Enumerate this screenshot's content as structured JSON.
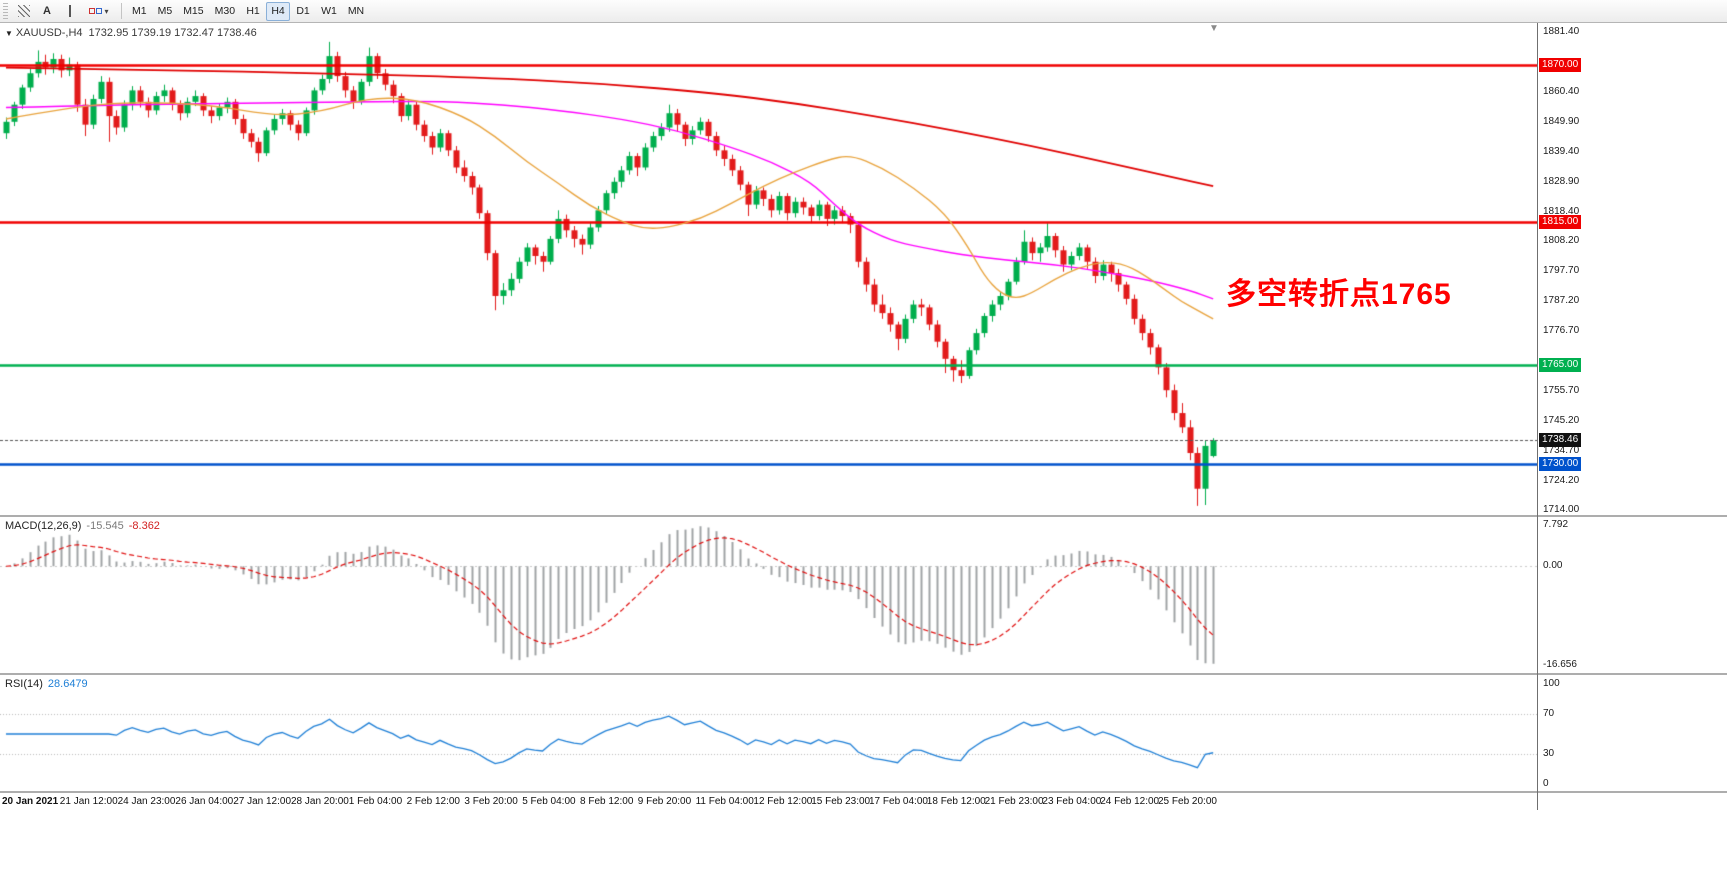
{
  "toolbar": {
    "text_tool_label": "A",
    "shapes_chevron": "▾",
    "timeframes": [
      "M1",
      "M5",
      "M15",
      "M30",
      "H1",
      "H4",
      "D1",
      "W1",
      "MN"
    ],
    "active_timeframe": "H4"
  },
  "chart": {
    "context_arrow": "▼",
    "title": "XAUUSD-,H4",
    "ohlc_text": "1732.95 1739.19 1732.47 1738.46",
    "shift_marker": "▼",
    "annotation": {
      "text": "多空转折点1765",
      "color": "#ff0000"
    },
    "current_price": {
      "label": "1738.46",
      "value": 1738.46,
      "color": "#111111"
    },
    "levels": [
      {
        "value": 1870.0,
        "label": "1870.00",
        "color": "#f00000"
      },
      {
        "value": 1815.0,
        "label": "1815.00",
        "color": "#f00000"
      },
      {
        "value": 1765.0,
        "label": "1765.00",
        "color": "#00b050"
      },
      {
        "value": 1730.0,
        "label": "1730.00",
        "color": "#0052cc"
      }
    ],
    "y_ticks": [
      "1881.40",
      "1860.40",
      "1849.90",
      "1839.40",
      "1828.90",
      "1818.40",
      "1808.20",
      "1797.70",
      "1787.20",
      "1776.70",
      "1755.70",
      "1745.20",
      "1734.70",
      "1724.20",
      "1714.00"
    ],
    "x_labels": [
      "20 Jan 2021",
      "21 Jan 12:00",
      "24 Jan 23:00",
      "26 Jan 04:00",
      "27 Jan 12:00",
      "28 Jan 20:00",
      "1 Feb 04:00",
      "2 Feb 12:00",
      "3 Feb 20:00",
      "5 Feb 04:00",
      "8 Feb 12:00",
      "9 Feb 20:00",
      "11 Feb 04:00",
      "12 Feb 12:00",
      "15 Feb 23:00",
      "17 Feb 04:00",
      "18 Feb 12:00",
      "21 Feb 23:00",
      "23 Feb 04:00",
      "24 Feb 12:00",
      "25 Feb 20:00"
    ]
  },
  "chart_data": {
    "type": "candlestick",
    "symbol": "XAUUSD-",
    "timeframe": "H4",
    "current_bar": {
      "open": 1732.95,
      "high": 1739.19,
      "low": 1732.47,
      "close": 1738.46
    },
    "colors": {
      "up": "#00ae4d",
      "down": "#e21b1b"
    },
    "candles": [
      [
        1846,
        1851.5,
        1844,
        1850
      ],
      [
        1850,
        1857,
        1848.5,
        1856
      ],
      [
        1856,
        1863,
        1854.5,
        1862
      ],
      [
        1862,
        1868.5,
        1860.5,
        1867
      ],
      [
        1867,
        1875,
        1865.5,
        1871
      ],
      [
        1871,
        1873.5,
        1866.5,
        1869
      ],
      [
        1869,
        1874,
        1867,
        1872
      ],
      [
        1872,
        1873.5,
        1865.5,
        1868
      ],
      [
        1868,
        1872.5,
        1866,
        1870
      ],
      [
        1870,
        1871,
        1853.5,
        1856
      ],
      [
        1856,
        1858,
        1845,
        1849
      ],
      [
        1849,
        1859.5,
        1847.5,
        1858
      ],
      [
        1858,
        1866,
        1856.5,
        1864
      ],
      [
        1864,
        1865.5,
        1843,
        1852
      ],
      [
        1852,
        1854,
        1845.5,
        1848
      ],
      [
        1848,
        1857.5,
        1846.5,
        1856
      ],
      [
        1856,
        1862.5,
        1854,
        1861
      ],
      [
        1861,
        1862.5,
        1855,
        1857
      ],
      [
        1857,
        1858.5,
        1851.5,
        1854
      ],
      [
        1854,
        1860.5,
        1852.5,
        1859
      ],
      [
        1859,
        1863,
        1857,
        1861
      ],
      [
        1861,
        1862,
        1854,
        1856
      ],
      [
        1856,
        1857.5,
        1850.5,
        1853
      ],
      [
        1853,
        1858.5,
        1851.5,
        1857
      ],
      [
        1857,
        1861,
        1855.5,
        1859
      ],
      [
        1859,
        1860,
        1852,
        1854
      ],
      [
        1854,
        1855.5,
        1849.5,
        1852
      ],
      [
        1852,
        1856.5,
        1850.5,
        1855
      ],
      [
        1855,
        1858.5,
        1853,
        1857
      ],
      [
        1857,
        1858,
        1849,
        1851
      ],
      [
        1851,
        1852.5,
        1844,
        1846
      ],
      [
        1846,
        1847.5,
        1841,
        1843
      ],
      [
        1843,
        1844.5,
        1836,
        1839
      ],
      [
        1839,
        1848,
        1838,
        1847
      ],
      [
        1847,
        1852.5,
        1845.5,
        1851
      ],
      [
        1851,
        1854.5,
        1849,
        1853
      ],
      [
        1853,
        1854,
        1847,
        1849
      ],
      [
        1849,
        1850.5,
        1843.5,
        1846
      ],
      [
        1846,
        1855,
        1845,
        1854
      ],
      [
        1854,
        1862,
        1852.5,
        1861
      ],
      [
        1861,
        1866.5,
        1859.5,
        1865
      ],
      [
        1865,
        1878,
        1863.5,
        1873
      ],
      [
        1873,
        1874.5,
        1864,
        1866
      ],
      [
        1866,
        1867.5,
        1858.5,
        1861
      ],
      [
        1861,
        1862.5,
        1854.5,
        1857
      ],
      [
        1857,
        1865,
        1856,
        1864
      ],
      [
        1864,
        1876,
        1862.5,
        1873
      ],
      [
        1873,
        1874,
        1865,
        1867
      ],
      [
        1867,
        1868.5,
        1861,
        1863
      ],
      [
        1863,
        1864.5,
        1856.5,
        1859
      ],
      [
        1859,
        1860,
        1850,
        1852
      ],
      [
        1852,
        1857.5,
        1850.5,
        1856
      ],
      [
        1856,
        1857,
        1847,
        1849
      ],
      [
        1849,
        1850.5,
        1843,
        1845
      ],
      [
        1845,
        1846.5,
        1838.5,
        1841
      ],
      [
        1841,
        1847.5,
        1839.5,
        1846
      ],
      [
        1846,
        1847,
        1838,
        1840
      ],
      [
        1840,
        1841.5,
        1832,
        1834
      ],
      [
        1834,
        1836.5,
        1829,
        1831
      ],
      [
        1831,
        1832.5,
        1824.5,
        1827
      ],
      [
        1827,
        1828,
        1816,
        1818
      ],
      [
        1818,
        1819,
        1801.5,
        1804
      ],
      [
        1804,
        1805,
        1784,
        1789
      ],
      [
        1789,
        1793.5,
        1786,
        1791
      ],
      [
        1791,
        1797,
        1789,
        1795
      ],
      [
        1795,
        1802.5,
        1793.5,
        1801
      ],
      [
        1801,
        1807.5,
        1799.5,
        1806
      ],
      [
        1806,
        1807,
        1800,
        1803
      ],
      [
        1803,
        1804.5,
        1797.5,
        1801
      ],
      [
        1801,
        1810,
        1800,
        1809
      ],
      [
        1809,
        1819,
        1807.5,
        1816
      ],
      [
        1816,
        1817.5,
        1809.5,
        1812
      ],
      [
        1812,
        1813.5,
        1806,
        1809
      ],
      [
        1809,
        1810.5,
        1803.5,
        1807
      ],
      [
        1807,
        1814.5,
        1805.5,
        1813
      ],
      [
        1813,
        1820.5,
        1811.5,
        1819
      ],
      [
        1819,
        1826,
        1817.5,
        1825
      ],
      [
        1825,
        1830.5,
        1823,
        1829
      ],
      [
        1829,
        1834.5,
        1827,
        1833
      ],
      [
        1833,
        1839.5,
        1831.5,
        1838
      ],
      [
        1838,
        1839,
        1831,
        1834
      ],
      [
        1834,
        1842.5,
        1833,
        1841
      ],
      [
        1841,
        1846.5,
        1839.5,
        1845
      ],
      [
        1845,
        1849.5,
        1843.5,
        1848
      ],
      [
        1848,
        1856,
        1846.5,
        1853
      ],
      [
        1853,
        1854.5,
        1846.5,
        1849
      ],
      [
        1849,
        1850,
        1841.5,
        1844
      ],
      [
        1844,
        1848.5,
        1842,
        1847
      ],
      [
        1847,
        1851.5,
        1845.5,
        1850
      ],
      [
        1850,
        1851,
        1843,
        1845
      ],
      [
        1845,
        1846.5,
        1838,
        1840
      ],
      [
        1840,
        1841.5,
        1834.5,
        1837
      ],
      [
        1837,
        1838.5,
        1831,
        1833
      ],
      [
        1833,
        1834.5,
        1826,
        1828
      ],
      [
        1828,
        1829,
        1817,
        1821
      ],
      [
        1821,
        1827.5,
        1819.5,
        1826
      ],
      [
        1826,
        1827,
        1820.5,
        1823
      ],
      [
        1823,
        1824.5,
        1816.5,
        1819
      ],
      [
        1819,
        1825.5,
        1817.5,
        1824
      ],
      [
        1824,
        1825,
        1815.5,
        1818
      ],
      [
        1818,
        1823.5,
        1816.5,
        1822
      ],
      [
        1822,
        1823.5,
        1817.5,
        1820
      ],
      [
        1820,
        1821,
        1814.5,
        1817
      ],
      [
        1817,
        1822.5,
        1815.5,
        1821
      ],
      [
        1821,
        1822,
        1813.5,
        1816
      ],
      [
        1816,
        1820.5,
        1814,
        1819
      ],
      [
        1819,
        1820.5,
        1814.5,
        1817
      ],
      [
        1817,
        1818,
        1811,
        1814
      ],
      [
        1814,
        1815,
        1799,
        1801
      ],
      [
        1801,
        1802.5,
        1790.5,
        1793
      ],
      [
        1793,
        1795,
        1783.5,
        1786
      ],
      [
        1786,
        1789.5,
        1781,
        1783
      ],
      [
        1783,
        1785,
        1776.5,
        1779
      ],
      [
        1779,
        1780,
        1770,
        1774
      ],
      [
        1774,
        1782.5,
        1772.5,
        1781
      ],
      [
        1781,
        1787.5,
        1779.5,
        1786
      ],
      [
        1786,
        1788,
        1782,
        1785
      ],
      [
        1785,
        1786,
        1777,
        1779
      ],
      [
        1779,
        1780.5,
        1771,
        1773
      ],
      [
        1773,
        1774,
        1762,
        1767
      ],
      [
        1767,
        1768,
        1759,
        1763
      ],
      [
        1763,
        1766.5,
        1758.5,
        1761
      ],
      [
        1761,
        1771,
        1760,
        1770
      ],
      [
        1770,
        1777.5,
        1768.5,
        1776
      ],
      [
        1776,
        1783,
        1774.5,
        1782
      ],
      [
        1782,
        1787.5,
        1780,
        1786
      ],
      [
        1786,
        1790.5,
        1784,
        1789
      ],
      [
        1789,
        1795,
        1787.5,
        1794
      ],
      [
        1794,
        1802.5,
        1793,
        1801
      ],
      [
        1801,
        1812,
        1800,
        1808
      ],
      [
        1808,
        1809.5,
        1801.5,
        1804
      ],
      [
        1804,
        1807.5,
        1801,
        1806
      ],
      [
        1806,
        1814.5,
        1804.5,
        1810
      ],
      [
        1810,
        1811,
        1802.5,
        1805
      ],
      [
        1805,
        1806.5,
        1797.5,
        1800
      ],
      [
        1800,
        1804.5,
        1798,
        1803
      ],
      [
        1803,
        1807.5,
        1801.5,
        1806
      ],
      [
        1806,
        1807,
        1798.5,
        1801
      ],
      [
        1801,
        1802.5,
        1793.5,
        1796
      ],
      [
        1796,
        1801.5,
        1794.5,
        1800
      ],
      [
        1800,
        1801,
        1794,
        1797
      ],
      [
        1797,
        1798.5,
        1790.5,
        1793
      ],
      [
        1793,
        1794,
        1786,
        1788
      ],
      [
        1788,
        1789.5,
        1779,
        1781
      ],
      [
        1781,
        1782.5,
        1773.5,
        1776
      ],
      [
        1776,
        1777.5,
        1768.5,
        1771
      ],
      [
        1771,
        1772,
        1761.5,
        1764
      ],
      [
        1764,
        1765.5,
        1753.5,
        1756
      ],
      [
        1756,
        1758,
        1745.5,
        1748
      ],
      [
        1748,
        1751.5,
        1741,
        1743
      ],
      [
        1743,
        1745.5,
        1731.5,
        1734
      ],
      [
        1734,
        1736,
        1715.5,
        1721.5
      ],
      [
        1721.5,
        1738.5,
        1715.8,
        1736.5
      ],
      [
        1732.95,
        1739.19,
        1732.47,
        1738.46
      ]
    ],
    "moving_averages": [
      {
        "name": "ma-slow",
        "color": "#e00000",
        "width": 1.8,
        "points": [
          [
            0,
            1869
          ],
          [
            20,
            1868.2
          ],
          [
            40,
            1867
          ],
          [
            60,
            1865.5
          ],
          [
            75,
            1863.5
          ],
          [
            90,
            1860
          ],
          [
            100,
            1856.5
          ],
          [
            110,
            1852
          ],
          [
            120,
            1847
          ],
          [
            130,
            1841.5
          ],
          [
            140,
            1835.5
          ],
          [
            148,
            1830.5
          ],
          [
            153,
            1827.5
          ]
        ]
      },
      {
        "name": "ma-mid",
        "color": "#ff00ff",
        "width": 1.4,
        "points": [
          [
            0,
            1855
          ],
          [
            15,
            1856
          ],
          [
            30,
            1856.5
          ],
          [
            45,
            1857
          ],
          [
            55,
            1857.2
          ],
          [
            63,
            1856
          ],
          [
            70,
            1854
          ],
          [
            78,
            1851
          ],
          [
            85,
            1847
          ],
          [
            92,
            1841
          ],
          [
            97,
            1836
          ],
          [
            102,
            1829
          ],
          [
            105,
            1821
          ],
          [
            108,
            1814
          ],
          [
            112,
            1808.5
          ],
          [
            116,
            1806
          ],
          [
            121,
            1803.5
          ],
          [
            127,
            1801.5
          ],
          [
            133,
            1800
          ],
          [
            139,
            1797.5
          ],
          [
            145,
            1794.5
          ],
          [
            150,
            1791
          ],
          [
            153,
            1788
          ]
        ]
      },
      {
        "name": "ma-fast",
        "color": "#e8a33d",
        "width": 1.4,
        "points": [
          [
            0,
            1851
          ],
          [
            8,
            1855
          ],
          [
            16,
            1857
          ],
          [
            26,
            1856
          ],
          [
            34,
            1852
          ],
          [
            40,
            1853.5
          ],
          [
            46,
            1858.5
          ],
          [
            52,
            1858
          ],
          [
            58,
            1852
          ],
          [
            62,
            1845
          ],
          [
            66,
            1836
          ],
          [
            70,
            1828.5
          ],
          [
            74,
            1820.5
          ],
          [
            78,
            1815
          ],
          [
            81,
            1812.5
          ],
          [
            84,
            1813
          ],
          [
            88,
            1816
          ],
          [
            92,
            1821.5
          ],
          [
            96,
            1827.5
          ],
          [
            100,
            1832.5
          ],
          [
            104,
            1836.5
          ],
          [
            107,
            1838.5
          ],
          [
            111,
            1834
          ],
          [
            115,
            1827
          ],
          [
            119,
            1818
          ],
          [
            122,
            1806
          ],
          [
            124,
            1796
          ],
          [
            126,
            1790
          ],
          [
            128,
            1788
          ],
          [
            130,
            1790
          ],
          [
            133,
            1795
          ],
          [
            136,
            1799
          ],
          [
            139,
            1801
          ],
          [
            142,
            1800
          ],
          [
            145,
            1795
          ],
          [
            147,
            1791
          ],
          [
            149,
            1787
          ],
          [
            151,
            1784
          ],
          [
            153,
            1781
          ]
        ]
      }
    ],
    "macd": {
      "label": "MACD(12,26,9)",
      "hist_value": "-15.545",
      "signal_value": "-8.362",
      "fast": 12,
      "slow": 26,
      "signal": 9,
      "axis_labels": [
        "7.792",
        "0.00",
        "-16.656"
      ]
    },
    "rsi": {
      "label": "RSI(14)",
      "value": "28.6479",
      "period": 14,
      "levels": [
        70,
        30
      ],
      "axis_labels": [
        "100",
        "70",
        "30",
        "0"
      ]
    }
  }
}
